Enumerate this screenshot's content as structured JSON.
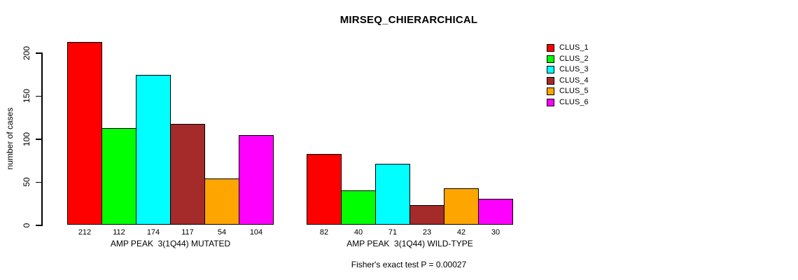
{
  "chart_data": {
    "type": "bar",
    "title": "MIRSEQ_CHIERARCHICAL",
    "ylabel": "number of cases",
    "xlabel": "",
    "yticks": [
      0,
      50,
      100,
      150,
      200
    ],
    "ylim": [
      0,
      220
    ],
    "grid": false,
    "legend_position": "right",
    "categories": [
      "AMP PEAK  3(1Q44) MUTATED",
      "AMP PEAK  3(1Q44) WILD-TYPE"
    ],
    "series": [
      {
        "name": "CLUS_1",
        "color": "#FF0000",
        "values": [
          212,
          82
        ]
      },
      {
        "name": "CLUS_2",
        "color": "#00FF00",
        "values": [
          112,
          40
        ]
      },
      {
        "name": "CLUS_3",
        "color": "#00FFFF",
        "values": [
          174,
          71
        ]
      },
      {
        "name": "CLUS_4",
        "color": "#A52A2A",
        "values": [
          117,
          23
        ]
      },
      {
        "name": "CLUS_5",
        "color": "#FFA500",
        "values": [
          54,
          42
        ]
      },
      {
        "name": "CLUS_6",
        "color": "#FF00FF",
        "values": [
          104,
          30
        ]
      }
    ],
    "bar_value_labels": true,
    "annotation": "Fisher's exact test P = 0.00027"
  },
  "colors": {
    "axis": "#000000",
    "text": "#000000",
    "background": "#FFFFFF"
  }
}
